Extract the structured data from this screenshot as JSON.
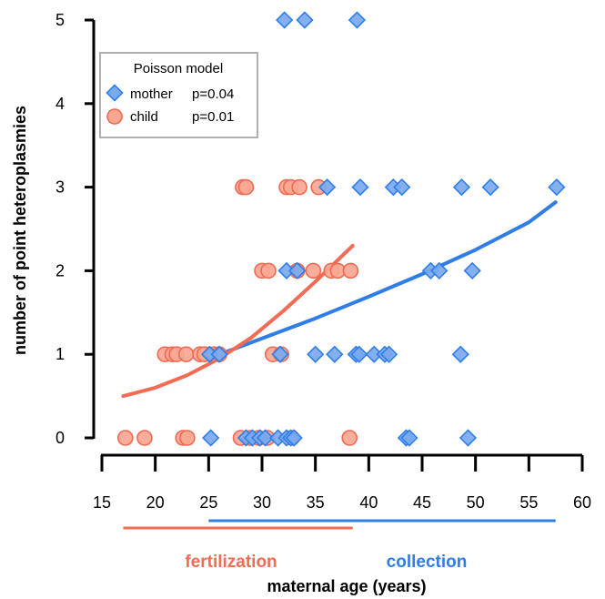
{
  "chart_data": {
    "type": "scatter",
    "xlabel": "maternal age (years)",
    "ylabel": "number of point heteroplasmies",
    "xlim": [
      15,
      60
    ],
    "ylim": [
      0,
      5
    ],
    "xticks": [
      "15",
      "20",
      "25",
      "30",
      "35",
      "40",
      "45",
      "50",
      "55",
      "60"
    ],
    "yticks": [
      "0",
      "1",
      "2",
      "3",
      "4",
      "5"
    ],
    "legend": {
      "title": "Poisson model",
      "placement": "top-left",
      "entries": [
        {
          "label": "mother",
          "pvalue": "p=0.04"
        },
        {
          "label": "child",
          "pvalue": "p=0.01"
        }
      ]
    },
    "ranges": [
      {
        "label": "fertilization",
        "from": 17.0,
        "to": 38.5,
        "color": "#f26b52"
      },
      {
        "label": "collection",
        "from": 25.0,
        "to": 57.5,
        "color": "#2f7ee8"
      }
    ],
    "colors": {
      "mother_fill": "#7aa9ee",
      "mother_stroke": "#2f7ee8",
      "child_fill": "#f7a793",
      "child_stroke": "#ef6a52",
      "mother_fit": "#2f7ee8",
      "child_fit": "#f26b52",
      "axis": "#000000"
    },
    "series": [
      {
        "name": "mother",
        "marker": "diamond",
        "points": [
          [
            25.2,
            0
          ],
          [
            28.5,
            0
          ],
          [
            29.1,
            0
          ],
          [
            29.8,
            0
          ],
          [
            30.3,
            0
          ],
          [
            31.5,
            0
          ],
          [
            32.3,
            0
          ],
          [
            32.7,
            0
          ],
          [
            33.0,
            0
          ],
          [
            43.5,
            0
          ],
          [
            43.8,
            0
          ],
          [
            49.3,
            0
          ],
          [
            25.1,
            1
          ],
          [
            26.0,
            1
          ],
          [
            31.7,
            1
          ],
          [
            35.0,
            1
          ],
          [
            36.8,
            1
          ],
          [
            38.8,
            1
          ],
          [
            39.1,
            1
          ],
          [
            40.5,
            1
          ],
          [
            41.5,
            1
          ],
          [
            41.9,
            1
          ],
          [
            48.6,
            1
          ],
          [
            32.3,
            2
          ],
          [
            33.3,
            2
          ],
          [
            45.8,
            2
          ],
          [
            46.6,
            2
          ],
          [
            49.7,
            2
          ],
          [
            36.1,
            3
          ],
          [
            39.2,
            3
          ],
          [
            42.3,
            3
          ],
          [
            43.1,
            3
          ],
          [
            48.7,
            3
          ],
          [
            51.4,
            3
          ],
          [
            57.6,
            3
          ],
          [
            32.1,
            5
          ],
          [
            34.0,
            5
          ],
          [
            38.9,
            5
          ]
        ]
      },
      {
        "name": "child",
        "marker": "circle",
        "points": [
          [
            17.2,
            0
          ],
          [
            19.0,
            0
          ],
          [
            22.6,
            0
          ],
          [
            23.0,
            0
          ],
          [
            28.0,
            0
          ],
          [
            28.9,
            0
          ],
          [
            29.7,
            0
          ],
          [
            30.5,
            0
          ],
          [
            32.8,
            0
          ],
          [
            38.2,
            0
          ],
          [
            20.9,
            1
          ],
          [
            21.6,
            1
          ],
          [
            22.0,
            1
          ],
          [
            22.9,
            1
          ],
          [
            24.2,
            1
          ],
          [
            24.6,
            1
          ],
          [
            25.5,
            1
          ],
          [
            26.0,
            1
          ],
          [
            31.0,
            1
          ],
          [
            31.8,
            1
          ],
          [
            30.0,
            2
          ],
          [
            30.6,
            2
          ],
          [
            33.3,
            2
          ],
          [
            34.8,
            2
          ],
          [
            36.5,
            2
          ],
          [
            37.1,
            2
          ],
          [
            38.3,
            2
          ],
          [
            28.2,
            3
          ],
          [
            28.5,
            3
          ],
          [
            32.3,
            3
          ],
          [
            32.7,
            3
          ],
          [
            33.5,
            3
          ],
          [
            35.3,
            3
          ]
        ]
      }
    ],
    "fits": [
      {
        "name": "mother",
        "x": [
          25.0,
          30.0,
          35.0,
          40.0,
          45.0,
          50.0,
          55.0,
          57.5
        ],
        "y": [
          0.95,
          1.19,
          1.43,
          1.69,
          1.96,
          2.25,
          2.58,
          2.82
        ]
      },
      {
        "name": "child",
        "x": [
          17.0,
          20.0,
          23.0,
          26.0,
          29.0,
          32.0,
          35.0,
          38.5
        ],
        "y": [
          0.5,
          0.6,
          0.75,
          0.95,
          1.2,
          1.52,
          1.87,
          2.3
        ]
      }
    ]
  }
}
